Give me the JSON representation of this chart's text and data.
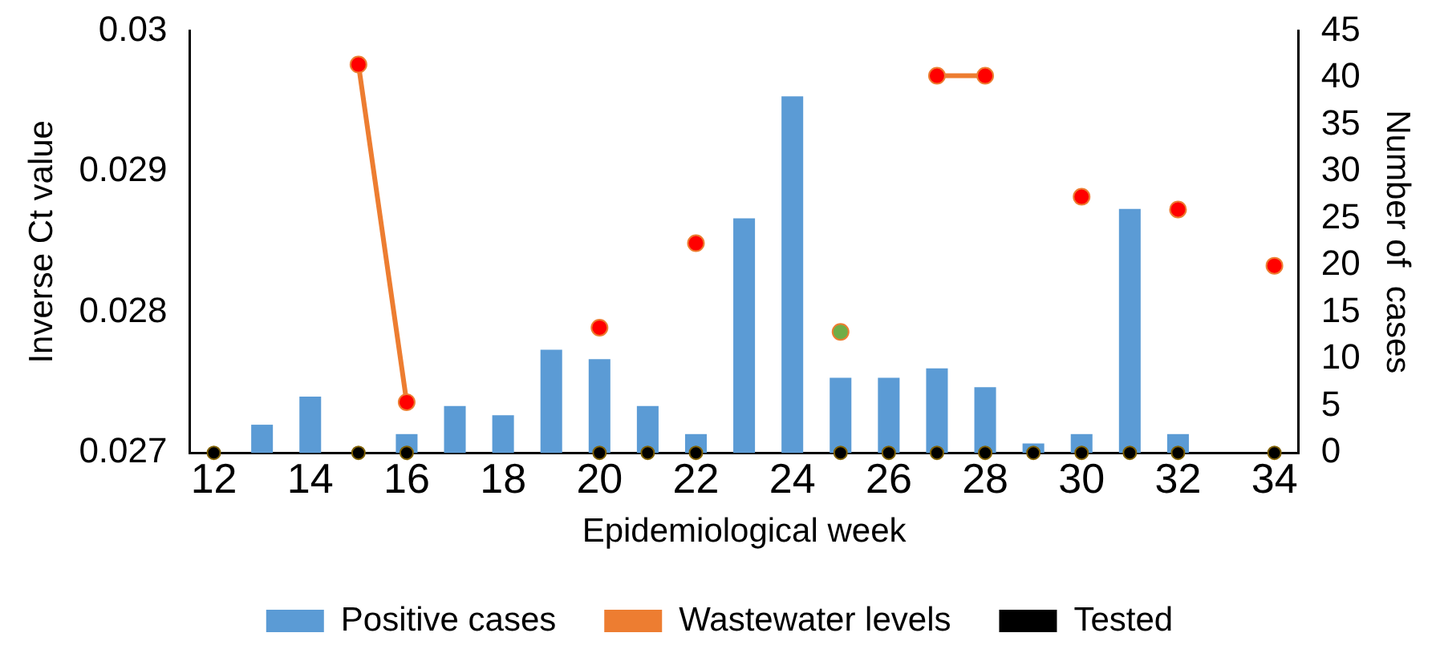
{
  "chart_data": {
    "type": "bar",
    "xlabel": "Epidemiological week",
    "ylabel": "Inverse Ct value",
    "y2label": "Number of  cases",
    "categories": [
      "12",
      null,
      "14",
      null,
      "16",
      null,
      "18",
      null,
      "20",
      null,
      "22",
      null,
      "24",
      null,
      "26",
      null,
      "28",
      null,
      "30",
      null,
      "32",
      null,
      "34"
    ],
    "series": [
      {
        "name": "Positive cases",
        "axis": "y2",
        "color": "#5b9bd5",
        "values": [
          null,
          3,
          6,
          null,
          2,
          5,
          4,
          11,
          10,
          5,
          2,
          25,
          38,
          8,
          8,
          9,
          7,
          1,
          2,
          26,
          2,
          null,
          null
        ]
      },
      {
        "name": "Wastewater levels",
        "type": "line",
        "axis": "y",
        "color": "#ed7d31",
        "colors": [
          "#ff0000",
          "#ff0000",
          "#ff0000",
          "#ff0000",
          "#ff0000",
          "#ff0000",
          "#ff0000",
          "#ff0000",
          "#ff0000",
          "#ff0000",
          "#ff0000",
          "#ff0000",
          "#ff0000",
          "#70ad47",
          "#ff0000",
          "#ff0000",
          "#ff0000",
          "#ff0000",
          "#ff0000",
          "#ff0000",
          "#ff0000",
          "#ff0000",
          "#ff0000"
        ],
        "values": [
          null,
          null,
          null,
          0.02976,
          0.02736,
          null,
          null,
          null,
          0.02789,
          null,
          0.02849,
          null,
          null,
          0.02786,
          null,
          0.02968,
          0.02968,
          null,
          0.02882,
          null,
          0.02873,
          null,
          0.02833
        ]
      },
      {
        "name": "Tested",
        "type": "scatter",
        "axis": "y2",
        "color": "#000000",
        "values": [
          0,
          null,
          null,
          0,
          0,
          null,
          null,
          null,
          0,
          0,
          0,
          null,
          null,
          0,
          0,
          0,
          0,
          0,
          0,
          0,
          0,
          null,
          0
        ]
      }
    ],
    "ylim": [
      0.027,
      0.03
    ],
    "yticks": [
      0.027,
      0.028,
      0.029,
      0.03
    ],
    "y2lim": [
      0,
      45
    ],
    "y2ticks": [
      0,
      5,
      10,
      15,
      20,
      25,
      30,
      35,
      40,
      45
    ],
    "grid": false,
    "legend": "bottom",
    "marker": "circle"
  }
}
